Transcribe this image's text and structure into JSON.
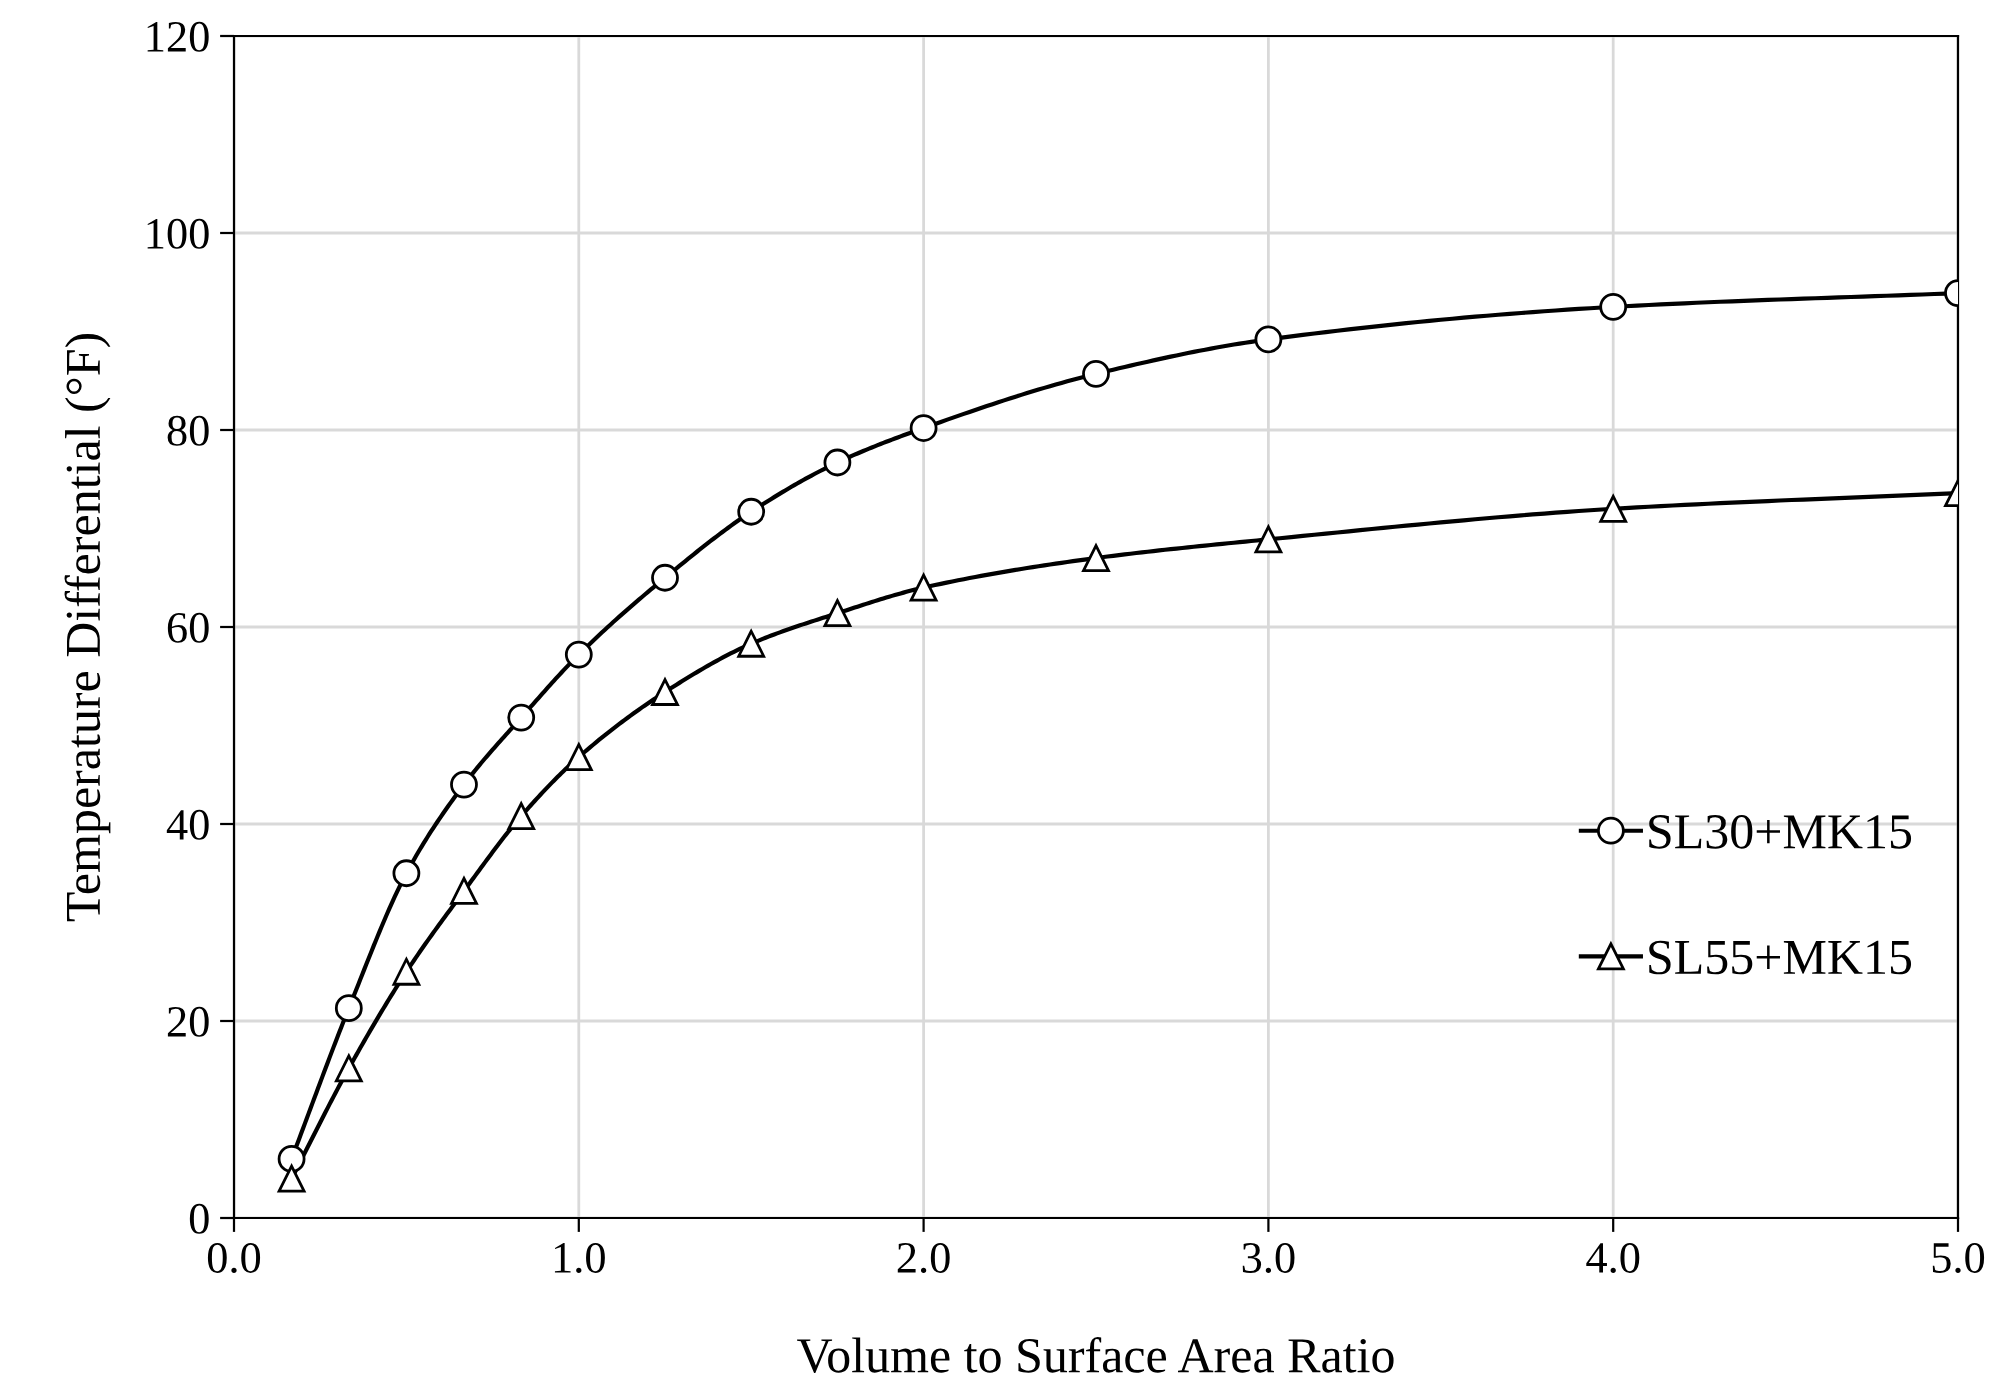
{
  "chart_data": {
    "type": "line",
    "xlabel": "Volume to Surface Area Ratio",
    "ylabel": "Temperature Differential (°F)",
    "x": [
      0.167,
      0.333,
      0.5,
      0.667,
      0.833,
      1.0,
      1.25,
      1.5,
      1.75,
      2.0,
      2.5,
      3.0,
      4.0,
      5.0
    ],
    "series": [
      {
        "name": "SL30+MK15",
        "color": "#000000",
        "marker": "circle",
        "values": [
          6,
          21.3,
          35,
          44,
          50.8,
          57.2,
          65,
          71.7,
          76.7,
          80.2,
          85.7,
          89.2,
          92.5,
          93.9
        ]
      },
      {
        "name": "SL55+MK15",
        "color": "#000000",
        "marker": "triangle",
        "values": [
          4,
          15.2,
          25,
          33.2,
          40.8,
          46.8,
          53.4,
          58.3,
          61.4,
          64,
          67,
          68.9,
          72,
          73.6
        ]
      }
    ],
    "xlim": [
      0,
      5
    ],
    "xticks": [
      {
        "value": 0,
        "label": "0.0"
      },
      {
        "value": 1,
        "label": "1.0"
      },
      {
        "value": 2,
        "label": "2.0"
      },
      {
        "value": 3,
        "label": "3.0"
      },
      {
        "value": 4,
        "label": "4.0"
      },
      {
        "value": 5,
        "label": "5.0"
      }
    ],
    "ylim": [
      0,
      120
    ],
    "yticks": [
      0,
      20,
      40,
      60,
      80,
      100,
      120
    ],
    "grid": true,
    "legend": "right",
    "line_style": "solid"
  }
}
